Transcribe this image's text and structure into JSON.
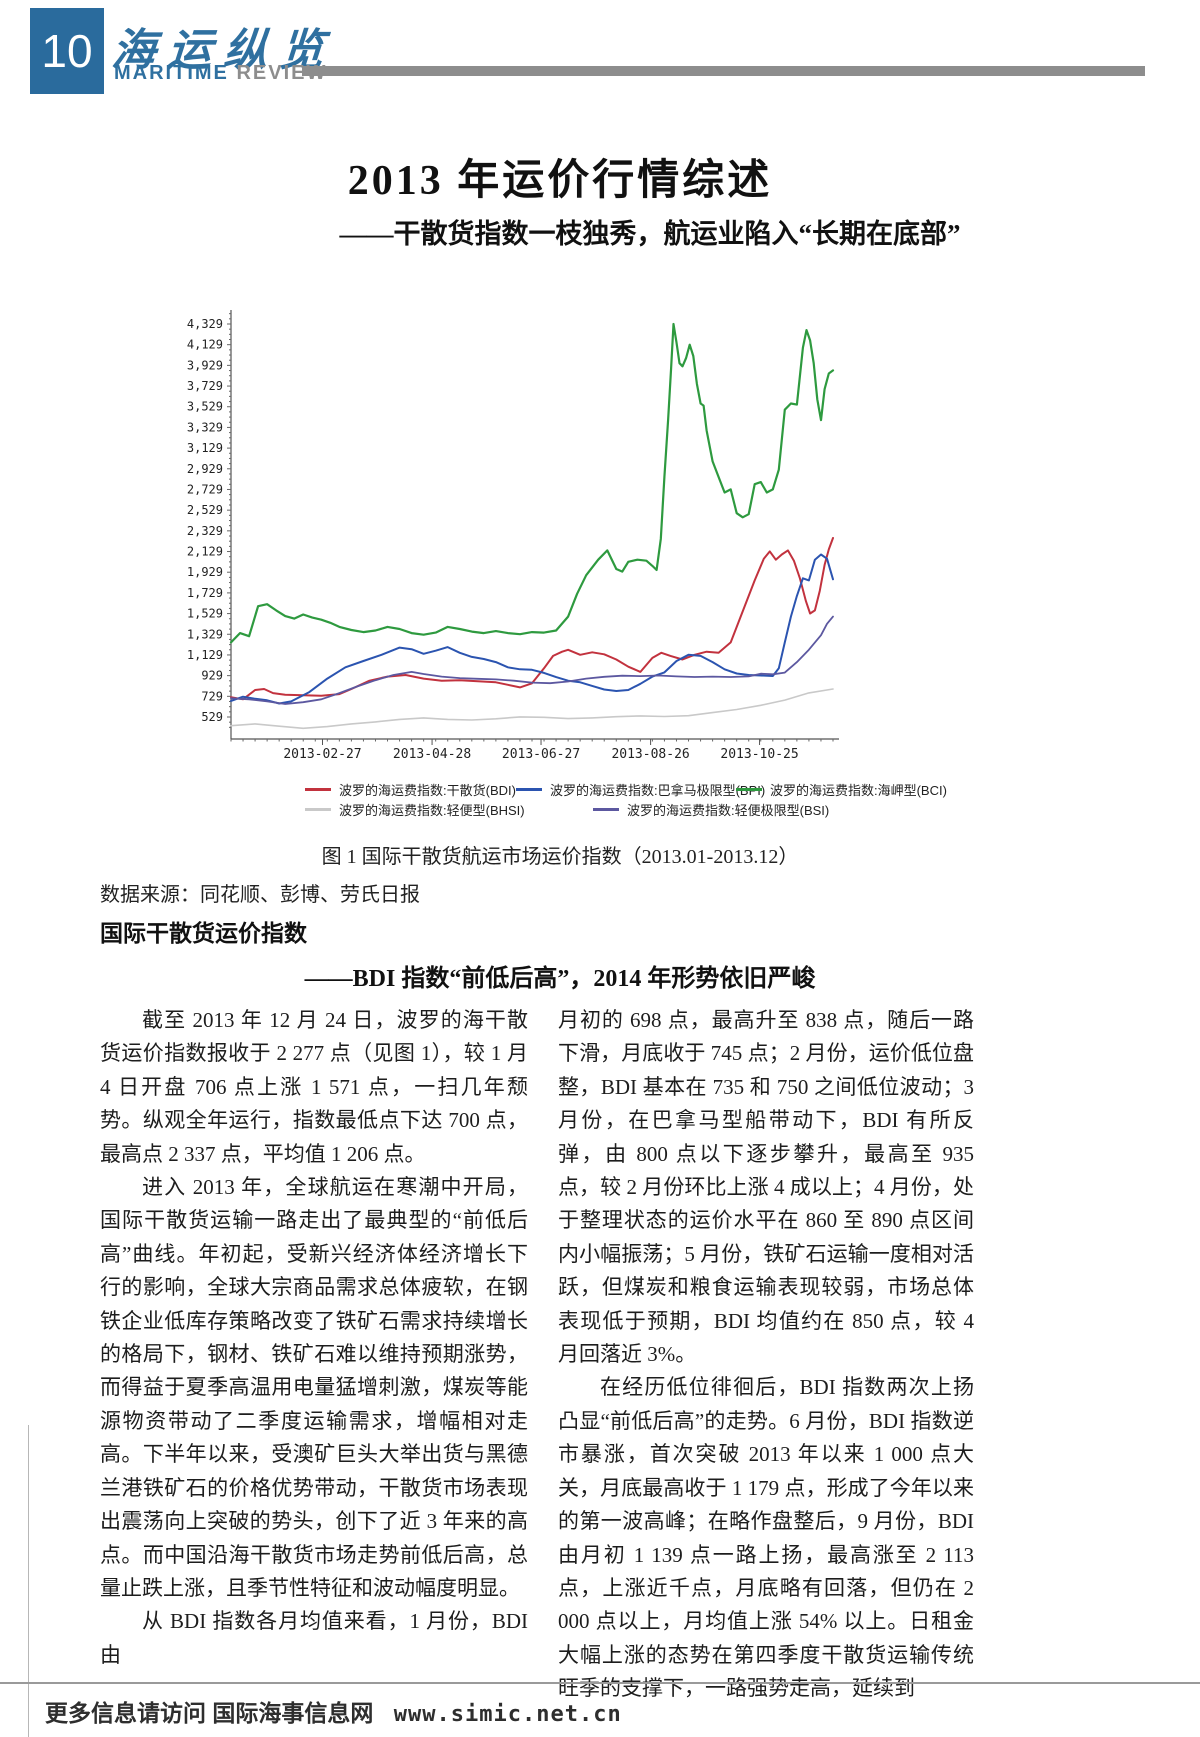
{
  "masthead": {
    "page_number": "10",
    "title_cn": "海运纵览",
    "title_en_1": "MARITIME",
    "title_en_2": "REVIEW"
  },
  "article": {
    "title": "2013 年运价行情综述",
    "subtitle": "——干散货指数一枝独秀，航运业陷入“长期在底部”"
  },
  "figure": {
    "caption": "图 1  国际干散货航运市场运价指数（2013.01-2013.12）",
    "source": "数据来源：同花顺、彭博、劳氏日报"
  },
  "section": {
    "heading": "国际干散货运价指数",
    "subheading": "——BDI 指数“前低后高”，2014 年形势依旧严峻"
  },
  "body": {
    "left_paragraphs": [
      {
        "indent": true,
        "text": "截至 2013 年 12 月 24 日，波罗的海干散货运价指数报收于 2 277 点（见图 1），较 1 月 4 日开盘 706 点上涨 1 571 点，一扫几年颓势。纵观全年运行，指数最低点下达 700 点，最高点 2 337 点，平均值 1 206 点。"
      },
      {
        "indent": true,
        "text": "进入 2013 年，全球航运在寒潮中开局，国际干散货运输一路走出了最典型的“前低后高”曲线。年初起，受新兴经济体经济增长下行的影响，全球大宗商品需求总体疲软，在钢铁企业低库存策略改变了铁矿石需求持续增长的格局下，钢材、铁矿石难以维持预期涨势，而得益于夏季高温用电量猛增刺激，煤炭等能源物资带动了二季度运输需求，增幅相对走高。下半年以来，受澳矿巨头大举出货与黑德兰港铁矿石的价格优势带动，干散货市场表现出震荡向上突破的势头，创下了近 3 年来的高点。而中国沿海干散货市场走势前低后高，总量止跌上涨，且季节性特征和波动幅度明显。"
      },
      {
        "indent": true,
        "text": "从 BDI 指数各月均值来看，1 月份，BDI 由"
      }
    ],
    "right_paragraphs": [
      {
        "indent": false,
        "text": "月初的 698 点，最高升至 838 点，随后一路下滑，月底收于 745 点；2 月份，运价低位盘整，BDI 基本在 735 和 750 之间低位波动；3 月份，在巴拿马型船带动下，BDI 有所反弹，由 800 点以下逐步攀升，最高至 935 点，较 2 月份环比上涨 4 成以上；4 月份，处于整理状态的运价水平在 860 至 890 点区间内小幅振荡；5 月份，铁矿石运输一度相对活跃，但煤炭和粮食运输表现较弱，市场总体表现低于预期，BDI 均值约在 850 点，较 4 月回落近 3%。"
      },
      {
        "indent": true,
        "text": "在经历低位徘徊后，BDI 指数两次上扬凸显“前低后高”的走势。6 月份，BDI 指数逆市暴涨，首次突破 2013 年以来 1 000 点大关，月底最高收于 1 179 点，形成了今年以来的第一波高峰；在略作盘整后，9 月份，BDI 由月初 1 139 点一路上扬，最高涨至 2 113 点，上涨近千点，月底略有回落，但仍在 2 000 点以上，月均值上涨 54% 以上。日租金大幅上涨的态势在第四季度干散货运输传统旺季的支撑下，一路强势走高，延续到"
      }
    ]
  },
  "footer": {
    "text": "更多信息请访问  国际海事信息网",
    "url": "www.simic.net.cn"
  },
  "chart_data": {
    "type": "line",
    "title": "国际干散货航运市场运价指数（2013.01-2013.12）",
    "xlabel": "",
    "ylabel": "",
    "grid": false,
    "legend_position": "bottom",
    "ylim": [
      429,
      4429
    ],
    "y_ticks": [
      "4,329",
      "4,129",
      "3,929",
      "3,729",
      "3,529",
      "3,329",
      "3,129",
      "2,929",
      "2,729",
      "2,529",
      "2,329",
      "2,129",
      "1,929",
      "1,729",
      "1,529",
      "1,329",
      "1,129",
      "929",
      "729",
      "529"
    ],
    "y_tick_top_value": 4329,
    "y_tick_step": 200,
    "x_ticks": [
      "2013-02-27",
      "2013-04-28",
      "2013-06-27",
      "2013-08-26",
      "2013-10-25"
    ],
    "x_tick_positions": [
      0.152,
      0.334,
      0.515,
      0.697,
      0.878
    ],
    "legend_rows": [
      [
        0,
        1,
        2
      ],
      [
        3,
        4
      ]
    ],
    "series": [
      {
        "name": "波罗的海运费指数:干散货(BDI)",
        "color": "#c2323e",
        "width": 2,
        "points": [
          [
            0,
            720
          ],
          [
            0.02,
            700
          ],
          [
            0.04,
            790
          ],
          [
            0.055,
            800
          ],
          [
            0.07,
            760
          ],
          [
            0.09,
            745
          ],
          [
            0.12,
            740
          ],
          [
            0.15,
            735
          ],
          [
            0.18,
            750
          ],
          [
            0.2,
            800
          ],
          [
            0.23,
            880
          ],
          [
            0.26,
            920
          ],
          [
            0.29,
            935
          ],
          [
            0.32,
            900
          ],
          [
            0.35,
            880
          ],
          [
            0.38,
            885
          ],
          [
            0.41,
            875
          ],
          [
            0.44,
            865
          ],
          [
            0.46,
            840
          ],
          [
            0.48,
            815
          ],
          [
            0.5,
            855
          ],
          [
            0.52,
            1000
          ],
          [
            0.535,
            1120
          ],
          [
            0.55,
            1160
          ],
          [
            0.56,
            1179
          ],
          [
            0.58,
            1130
          ],
          [
            0.6,
            1155
          ],
          [
            0.62,
            1135
          ],
          [
            0.64,
            1085
          ],
          [
            0.66,
            1015
          ],
          [
            0.68,
            965
          ],
          [
            0.7,
            1100
          ],
          [
            0.715,
            1150
          ],
          [
            0.73,
            1120
          ],
          [
            0.75,
            1085
          ],
          [
            0.77,
            1130
          ],
          [
            0.79,
            1160
          ],
          [
            0.81,
            1150
          ],
          [
            0.83,
            1250
          ],
          [
            0.85,
            1550
          ],
          [
            0.87,
            1850
          ],
          [
            0.885,
            2060
          ],
          [
            0.895,
            2130
          ],
          [
            0.905,
            2050
          ],
          [
            0.915,
            2100
          ],
          [
            0.925,
            2140
          ],
          [
            0.935,
            2040
          ],
          [
            0.945,
            1870
          ],
          [
            0.955,
            1650
          ],
          [
            0.962,
            1530
          ],
          [
            0.97,
            1560
          ],
          [
            0.978,
            1750
          ],
          [
            0.986,
            2000
          ],
          [
            0.993,
            2150
          ],
          [
            1,
            2260
          ]
        ]
      },
      {
        "name": "波罗的海运费指数:巴拿马极限型(BPI)",
        "color": "#2b54b0",
        "width": 2,
        "points": [
          [
            0,
            685
          ],
          [
            0.02,
            725
          ],
          [
            0.04,
            705
          ],
          [
            0.06,
            690
          ],
          [
            0.08,
            660
          ],
          [
            0.1,
            680
          ],
          [
            0.13,
            770
          ],
          [
            0.16,
            900
          ],
          [
            0.19,
            1010
          ],
          [
            0.22,
            1070
          ],
          [
            0.25,
            1130
          ],
          [
            0.28,
            1200
          ],
          [
            0.3,
            1185
          ],
          [
            0.32,
            1140
          ],
          [
            0.34,
            1170
          ],
          [
            0.36,
            1205
          ],
          [
            0.38,
            1150
          ],
          [
            0.4,
            1110
          ],
          [
            0.42,
            1090
          ],
          [
            0.44,
            1060
          ],
          [
            0.46,
            1010
          ],
          [
            0.48,
            990
          ],
          [
            0.5,
            985
          ],
          [
            0.52,
            955
          ],
          [
            0.54,
            915
          ],
          [
            0.56,
            880
          ],
          [
            0.58,
            865
          ],
          [
            0.6,
            830
          ],
          [
            0.62,
            795
          ],
          [
            0.64,
            780
          ],
          [
            0.66,
            790
          ],
          [
            0.68,
            850
          ],
          [
            0.7,
            920
          ],
          [
            0.72,
            960
          ],
          [
            0.74,
            1070
          ],
          [
            0.76,
            1130
          ],
          [
            0.78,
            1120
          ],
          [
            0.8,
            1060
          ],
          [
            0.82,
            990
          ],
          [
            0.84,
            950
          ],
          [
            0.86,
            935
          ],
          [
            0.88,
            930
          ],
          [
            0.9,
            925
          ],
          [
            0.91,
            1000
          ],
          [
            0.92,
            1250
          ],
          [
            0.93,
            1500
          ],
          [
            0.94,
            1700
          ],
          [
            0.95,
            1870
          ],
          [
            0.96,
            1850
          ],
          [
            0.97,
            2050
          ],
          [
            0.98,
            2100
          ],
          [
            0.99,
            2060
          ],
          [
            1,
            1860
          ]
        ]
      },
      {
        "name": "波罗的海运费指数:海岬型(BCI)",
        "color": "#2e9a3f",
        "width": 2.2,
        "points": [
          [
            0,
            1250
          ],
          [
            0.015,
            1340
          ],
          [
            0.03,
            1310
          ],
          [
            0.045,
            1600
          ],
          [
            0.06,
            1620
          ],
          [
            0.075,
            1560
          ],
          [
            0.09,
            1505
          ],
          [
            0.105,
            1480
          ],
          [
            0.12,
            1520
          ],
          [
            0.135,
            1490
          ],
          [
            0.15,
            1470
          ],
          [
            0.165,
            1440
          ],
          [
            0.18,
            1400
          ],
          [
            0.2,
            1370
          ],
          [
            0.22,
            1350
          ],
          [
            0.24,
            1365
          ],
          [
            0.26,
            1400
          ],
          [
            0.28,
            1380
          ],
          [
            0.3,
            1340
          ],
          [
            0.32,
            1325
          ],
          [
            0.34,
            1345
          ],
          [
            0.36,
            1400
          ],
          [
            0.38,
            1380
          ],
          [
            0.4,
            1355
          ],
          [
            0.42,
            1340
          ],
          [
            0.44,
            1360
          ],
          [
            0.46,
            1340
          ],
          [
            0.48,
            1330
          ],
          [
            0.5,
            1350
          ],
          [
            0.52,
            1345
          ],
          [
            0.54,
            1365
          ],
          [
            0.56,
            1500
          ],
          [
            0.575,
            1720
          ],
          [
            0.59,
            1900
          ],
          [
            0.61,
            2050
          ],
          [
            0.625,
            2140
          ],
          [
            0.64,
            1960
          ],
          [
            0.65,
            1935
          ],
          [
            0.66,
            2030
          ],
          [
            0.675,
            2050
          ],
          [
            0.69,
            2040
          ],
          [
            0.7,
            1990
          ],
          [
            0.707,
            1950
          ],
          [
            0.714,
            2250
          ],
          [
            0.72,
            2850
          ],
          [
            0.726,
            3400
          ],
          [
            0.731,
            3900
          ],
          [
            0.735,
            4329
          ],
          [
            0.74,
            4150
          ],
          [
            0.745,
            3950
          ],
          [
            0.75,
            3920
          ],
          [
            0.756,
            4000
          ],
          [
            0.762,
            4129
          ],
          [
            0.768,
            4020
          ],
          [
            0.774,
            3750
          ],
          [
            0.78,
            3560
          ],
          [
            0.785,
            3540
          ],
          [
            0.79,
            3300
          ],
          [
            0.8,
            3000
          ],
          [
            0.81,
            2850
          ],
          [
            0.82,
            2700
          ],
          [
            0.83,
            2730
          ],
          [
            0.84,
            2500
          ],
          [
            0.85,
            2460
          ],
          [
            0.86,
            2490
          ],
          [
            0.87,
            2780
          ],
          [
            0.88,
            2800
          ],
          [
            0.89,
            2700
          ],
          [
            0.9,
            2730
          ],
          [
            0.91,
            2920
          ],
          [
            0.92,
            3500
          ],
          [
            0.93,
            3560
          ],
          [
            0.94,
            3550
          ],
          [
            0.95,
            4100
          ],
          [
            0.956,
            4270
          ],
          [
            0.962,
            4170
          ],
          [
            0.968,
            3950
          ],
          [
            0.974,
            3600
          ],
          [
            0.98,
            3400
          ],
          [
            0.986,
            3700
          ],
          [
            0.993,
            3850
          ],
          [
            1,
            3880
          ]
        ]
      },
      {
        "name": "波罗的海运费指数:轻便型(BHSI)",
        "color": "#c9c9c9",
        "width": 1.6,
        "points": [
          [
            0,
            445
          ],
          [
            0.04,
            462
          ],
          [
            0.08,
            440
          ],
          [
            0.12,
            420
          ],
          [
            0.16,
            436
          ],
          [
            0.2,
            462
          ],
          [
            0.24,
            482
          ],
          [
            0.28,
            506
          ],
          [
            0.32,
            520
          ],
          [
            0.36,
            506
          ],
          [
            0.4,
            500
          ],
          [
            0.44,
            512
          ],
          [
            0.48,
            530
          ],
          [
            0.52,
            526
          ],
          [
            0.56,
            514
          ],
          [
            0.6,
            520
          ],
          [
            0.64,
            532
          ],
          [
            0.68,
            540
          ],
          [
            0.72,
            534
          ],
          [
            0.76,
            542
          ],
          [
            0.8,
            572
          ],
          [
            0.84,
            602
          ],
          [
            0.88,
            642
          ],
          [
            0.92,
            692
          ],
          [
            0.96,
            762
          ],
          [
            1,
            800
          ]
        ]
      },
      {
        "name": "波罗的海运费指数:轻便极限型(BSI)",
        "color": "#5c58a0",
        "width": 1.8,
        "points": [
          [
            0,
            710
          ],
          [
            0.03,
            700
          ],
          [
            0.06,
            680
          ],
          [
            0.09,
            655
          ],
          [
            0.12,
            672
          ],
          [
            0.15,
            700
          ],
          [
            0.18,
            760
          ],
          [
            0.21,
            825
          ],
          [
            0.24,
            885
          ],
          [
            0.27,
            935
          ],
          [
            0.3,
            965
          ],
          [
            0.32,
            945
          ],
          [
            0.35,
            920
          ],
          [
            0.38,
            905
          ],
          [
            0.41,
            898
          ],
          [
            0.44,
            893
          ],
          [
            0.47,
            880
          ],
          [
            0.5,
            862
          ],
          [
            0.53,
            856
          ],
          [
            0.56,
            872
          ],
          [
            0.59,
            900
          ],
          [
            0.62,
            918
          ],
          [
            0.65,
            928
          ],
          [
            0.68,
            924
          ],
          [
            0.71,
            930
          ],
          [
            0.74,
            922
          ],
          [
            0.77,
            916
          ],
          [
            0.8,
            920
          ],
          [
            0.83,
            916
          ],
          [
            0.86,
            922
          ],
          [
            0.88,
            948
          ],
          [
            0.9,
            942
          ],
          [
            0.92,
            958
          ],
          [
            0.94,
            1060
          ],
          [
            0.96,
            1180
          ],
          [
            0.98,
            1320
          ],
          [
            0.99,
            1430
          ],
          [
            1,
            1500
          ]
        ]
      }
    ]
  }
}
